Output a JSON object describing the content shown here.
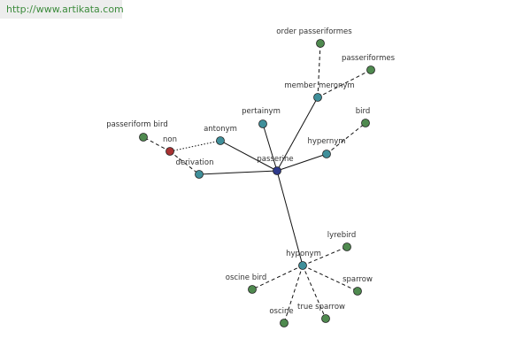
{
  "header": {
    "url": "http://www.artikata.com"
  },
  "nodes": [
    {
      "label": "passerine"
    },
    {
      "label": "member meronym"
    },
    {
      "label": "order passeriformes"
    },
    {
      "label": "passeriformes"
    },
    {
      "label": "pertainym"
    },
    {
      "label": "bird"
    },
    {
      "label": "hypernym"
    },
    {
      "label": "antonym"
    },
    {
      "label": "non"
    },
    {
      "label": "passeriform bird"
    },
    {
      "label": "derivation"
    },
    {
      "label": "hyponym"
    },
    {
      "label": "lyrebird"
    },
    {
      "label": "oscine bird"
    },
    {
      "label": "sparrow"
    },
    {
      "label": "oscine"
    },
    {
      "label": "true sparrow"
    }
  ]
}
